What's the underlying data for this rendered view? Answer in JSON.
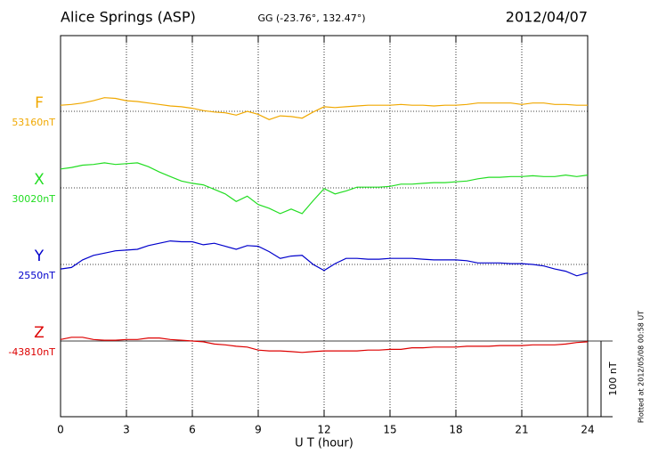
{
  "chart_data": {
    "type": "stacked-line",
    "title": "Alice Springs (ASP)",
    "subtitle": "GG (-23.76°, 132.47°)",
    "date": "2012/04/07",
    "xlabel": "U T (hour)",
    "footnote": "Plotted at 2012/05/08 00:58 UT",
    "xlim": [
      0,
      24
    ],
    "xticks": [
      0,
      3,
      6,
      9,
      12,
      15,
      18,
      21,
      24
    ],
    "grid": true,
    "scale_bar": {
      "value": 100,
      "label": "100 nT"
    },
    "x": [
      0,
      0.5,
      1,
      1.5,
      2,
      2.5,
      3,
      3.5,
      4,
      4.5,
      5,
      5.5,
      6,
      6.5,
      7,
      7.5,
      8,
      8.5,
      9,
      9.5,
      10,
      10.5,
      11,
      11.5,
      12,
      12.5,
      13,
      13.5,
      14,
      14.5,
      15,
      15.5,
      16,
      16.5,
      17,
      17.5,
      18,
      18.5,
      19,
      19.5,
      20,
      20.5,
      21,
      21.5,
      22,
      22.5,
      23,
      23.5,
      24
    ],
    "series": [
      {
        "name": "F",
        "color": "#f0a800",
        "baseline": {
          "value": 53160,
          "label": "53160nT"
        },
        "values": [
          53168,
          53169,
          53171,
          53174,
          53178,
          53177,
          53174,
          53173,
          53171,
          53169,
          53167,
          53166,
          53164,
          53161,
          53159,
          53158,
          53155,
          53160,
          53156,
          53149,
          53154,
          53153,
          53151,
          53159,
          53166,
          53165,
          53166,
          53167,
          53168,
          53168,
          53168,
          53169,
          53168,
          53168,
          53167,
          53168,
          53168,
          53169,
          53171,
          53171,
          53171,
          53171,
          53169,
          53171,
          53171,
          53169,
          53169,
          53168,
          53168
        ]
      },
      {
        "name": "X",
        "color": "#22dd22",
        "baseline": {
          "value": 30020,
          "label": "30020nT"
        },
        "values": [
          30045,
          30047,
          30050,
          30051,
          30053,
          30051,
          30052,
          30053,
          30048,
          30041,
          30035,
          30029,
          30026,
          30024,
          30018,
          30012,
          30002,
          30009,
          29998,
          29993,
          29986,
          29992,
          29986,
          30003,
          30019,
          30012,
          30016,
          30021,
          30021,
          30021,
          30022,
          30025,
          30025,
          30026,
          30027,
          30027,
          30028,
          30029,
          30032,
          30034,
          30034,
          30035,
          30035,
          30036,
          30035,
          30035,
          30037,
          30035,
          30037
        ]
      },
      {
        "name": "Y",
        "color": "#0000cc",
        "baseline": {
          "value": 2550,
          "label": "2550nT"
        },
        "values": [
          2544,
          2546,
          2556,
          2562,
          2565,
          2568,
          2569,
          2570,
          2575,
          2578,
          2581,
          2580,
          2580,
          2576,
          2578,
          2574,
          2570,
          2575,
          2574,
          2567,
          2558,
          2561,
          2562,
          2550,
          2542,
          2551,
          2558,
          2558,
          2557,
          2557,
          2558,
          2558,
          2558,
          2557,
          2556,
          2556,
          2556,
          2555,
          2552,
          2552,
          2552,
          2551,
          2551,
          2550,
          2548,
          2544,
          2541,
          2535,
          2539
        ]
      },
      {
        "name": "Z",
        "color": "#dd0000",
        "baseline": {
          "value": -43810,
          "label": "-43810nT"
        },
        "values": [
          -43808,
          -43805,
          -43805,
          -43808,
          -43809,
          -43809,
          -43808,
          -43808,
          -43806,
          -43806,
          -43808,
          -43809,
          -43810,
          -43811,
          -43814,
          -43815,
          -43817,
          -43818,
          -43822,
          -43823,
          -43823,
          -43824,
          -43825,
          -43824,
          -43823,
          -43823,
          -43823,
          -43823,
          -43822,
          -43822,
          -43821,
          -43821,
          -43819,
          -43819,
          -43818,
          -43818,
          -43818,
          -43817,
          -43817,
          -43817,
          -43816,
          -43816,
          -43816,
          -43815,
          -43815,
          -43815,
          -43814,
          -43812,
          -43811
        ]
      }
    ]
  }
}
